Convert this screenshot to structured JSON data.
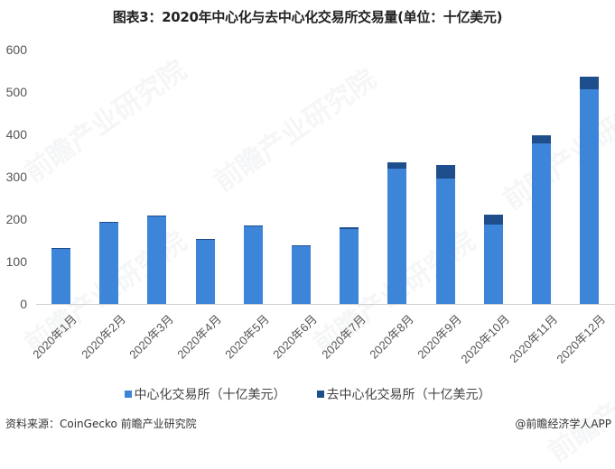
{
  "title": "图表3：2020年中心化与去中心化交易所交易量(单位：十亿美元)",
  "watermark_text": "前瞻产业研究院",
  "colors": {
    "centralized": "#3d85d8",
    "decentralized": "#1f4e8c"
  },
  "legend": {
    "centralized": "中心化交易所（十亿美元）",
    "decentralized": "去中心化交易所（十亿美元）"
  },
  "footer": {
    "source": "资料来源：CoinGecko 前瞻产业研究院",
    "credit": "@前瞻经济学人APP"
  },
  "chart_data": {
    "type": "bar",
    "stacked": true,
    "title": "图表3：2020年中心化与去中心化交易所交易量(单位：十亿美元)",
    "xlabel": "",
    "ylabel": "",
    "ylim": [
      0,
      600
    ],
    "yticks": [
      0,
      100,
      200,
      300,
      400,
      500,
      600
    ],
    "grid": false,
    "legend_position": "bottom",
    "categories": [
      "2020年1月",
      "2020年2月",
      "2020年3月",
      "2020年4月",
      "2020年5月",
      "2020年6月",
      "2020年7月",
      "2020年8月",
      "2020年9月",
      "2020年10月",
      "2020年11月",
      "2020年12月"
    ],
    "series": [
      {
        "name": "中心化交易所（十亿美元）",
        "values": [
          130,
          192,
          206,
          151,
          183,
          136,
          177,
          320,
          296,
          187,
          379,
          506
        ]
      },
      {
        "name": "去中心化交易所（十亿美元）",
        "values": [
          2,
          2,
          2,
          2,
          2,
          2,
          4,
          14,
          32,
          24,
          19,
          30
        ]
      }
    ]
  }
}
